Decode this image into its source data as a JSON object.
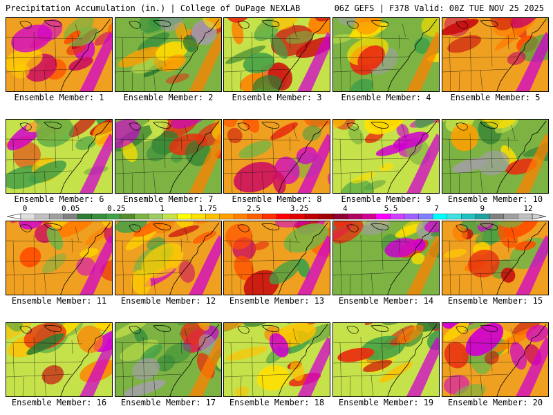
{
  "header": {
    "left_title": "Precipitation Accumulation (in.) | College of DuPage NEXLAB",
    "right_title": "06Z GEFS | F378 Valid: 00Z TUE NOV 25 2025"
  },
  "legend": {
    "tick_labels": [
      "0",
      "0.05",
      "0.25",
      "1",
      "1.75",
      "2.5",
      "3.25",
      "4",
      "5.5",
      "7",
      "9",
      "12"
    ],
    "colors": [
      "#e0e0e0",
      "#c0c0c0",
      "#a0a0a0",
      "#808080",
      "#2e7d32",
      "#388e3c",
      "#43a047",
      "#558b2f",
      "#7cb342",
      "#9ccc65",
      "#c6e24a",
      "#ffff00",
      "#ffe000",
      "#ffc000",
      "#ffa000",
      "#ff8000",
      "#ff6000",
      "#ff3000",
      "#ff0000",
      "#e00000",
      "#c00000",
      "#a00000",
      "#900030",
      "#b00060",
      "#d00090",
      "#ff00ff",
      "#d040ff",
      "#a060ff",
      "#8080ff",
      "#00ffff",
      "#40e0e0",
      "#20c0c0",
      "#20a0a0",
      "#808080",
      "#a0a0a0",
      "#c0c0c0"
    ]
  },
  "panels": [
    {
      "caption": "Ensemble Member: 1",
      "theme": "wet"
    },
    {
      "caption": "Ensemble Member: 2",
      "theme": "green"
    },
    {
      "caption": "Ensemble Member: 3",
      "theme": "mixed"
    },
    {
      "caption": "Ensemble Member: 4",
      "theme": "green"
    },
    {
      "caption": "Ensemble Member: 5",
      "theme": "wet"
    },
    {
      "caption": "Ensemble Member: 6",
      "theme": "mixed"
    },
    {
      "caption": "Ensemble Member: 7",
      "theme": "green"
    },
    {
      "caption": "Ensemble Member: 8",
      "theme": "wet"
    },
    {
      "caption": "Ensemble Member: 9",
      "theme": "mixed"
    },
    {
      "caption": "Ensemble Member: 10",
      "theme": "green"
    },
    {
      "caption": "Ensemble Member: 11",
      "theme": "wet"
    },
    {
      "caption": "Ensemble Member: 12",
      "theme": "wet"
    },
    {
      "caption": "Ensemble Member: 13",
      "theme": "wet"
    },
    {
      "caption": "Ensemble Member: 14",
      "theme": "green"
    },
    {
      "caption": "Ensemble Member: 15",
      "theme": "wet"
    },
    {
      "caption": "Ensemble Member: 16",
      "theme": "mixed"
    },
    {
      "caption": "Ensemble Member: 17",
      "theme": "green"
    },
    {
      "caption": "Ensemble Member: 18",
      "theme": "mixed"
    },
    {
      "caption": "Ensemble Member: 19",
      "theme": "mixed"
    },
    {
      "caption": "Ensemble Member: 20",
      "theme": "wet"
    }
  ]
}
